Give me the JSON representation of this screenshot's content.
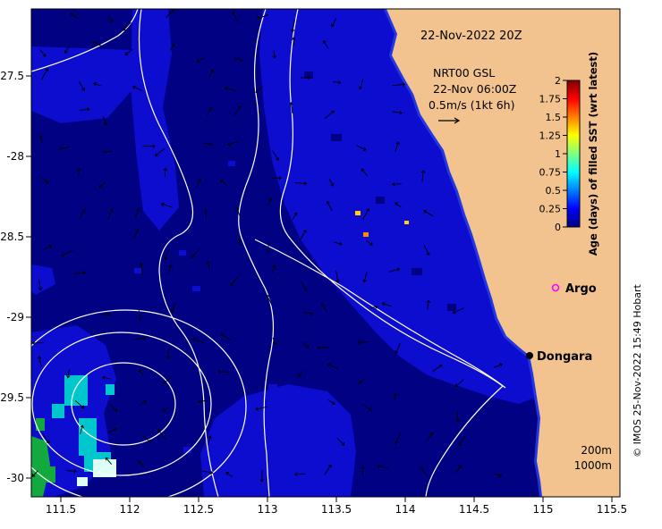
{
  "figure": {
    "timestamp": "22-Nov-2022 20Z",
    "velocity_legend": {
      "line1": "NRT00 GSL",
      "line2": "22-Nov 06:00Z",
      "line3": "0.5m/s (1kt 6h)"
    },
    "watermark": "© IMOS 25-Nov-2022 15:49 Hobart"
  },
  "axes": {
    "x_tick_labels": [
      "111.5",
      "112",
      "112.5",
      "113",
      "113.5",
      "114",
      "114.5",
      "115",
      "115.5"
    ],
    "y_tick_labels": [
      "-27.5",
      "-28",
      "-28.5",
      "-29",
      "-29.5",
      "-30"
    ]
  },
  "colorbar": {
    "title": "Age (days) of filled SST (wrt latest)",
    "tick_labels": [
      "2",
      "1.75",
      "1.5",
      "1.25",
      "1",
      "0.75",
      "0.5",
      "0.25",
      "0"
    ],
    "range": [
      0,
      2
    ],
    "colormap": "jet",
    "title_color": "#00008B"
  },
  "markers": {
    "argo": {
      "label": "Argo",
      "color": "#FF00FF"
    },
    "dongara": {
      "label": "Dongara",
      "color": "#000000"
    }
  },
  "isobath_legend": {
    "shallow": "200m",
    "deep": "1000m"
  },
  "colors": {
    "land": "#F2C38F",
    "ocean_base": "#010184",
    "ocean_recent": "#0D0DCF",
    "contour": "#FFFFFF",
    "vectors": "#000000"
  },
  "chart_data": {
    "type": "heatmap",
    "title": "Age (days) of filled SST (wrt latest)",
    "x_ticks": [
      111.5,
      112,
      112.5,
      113,
      113.5,
      114,
      114.5,
      115,
      115.5
    ],
    "y_ticks": [
      -27.5,
      -28,
      -28.5,
      -29,
      -29.5,
      -30
    ],
    "x_range": [
      111.28,
      115.57
    ],
    "y_range": [
      -30.12,
      -27.08
    ],
    "color_range": [
      0,
      2
    ],
    "colorbar_ticks": [
      0,
      0.25,
      0.5,
      0.75,
      1,
      1.25,
      1.5,
      1.75,
      2
    ],
    "colormap": "jet",
    "legend_position": "right",
    "overlays": [
      "white GSL/isobath contour lines",
      "black current vector arrows (0.5m/s = 1kt 6h)",
      "Argo float marker",
      "Dongara town marker"
    ],
    "notes": "Most ocean pixels show SST age 0-0.25 days (dark blue); mid-blue patches 0.25-0.5 days; small cyan/green/white patches up to 2 days in the south-west; tan land mask on the east with eddy contour rings in the south-west"
  }
}
